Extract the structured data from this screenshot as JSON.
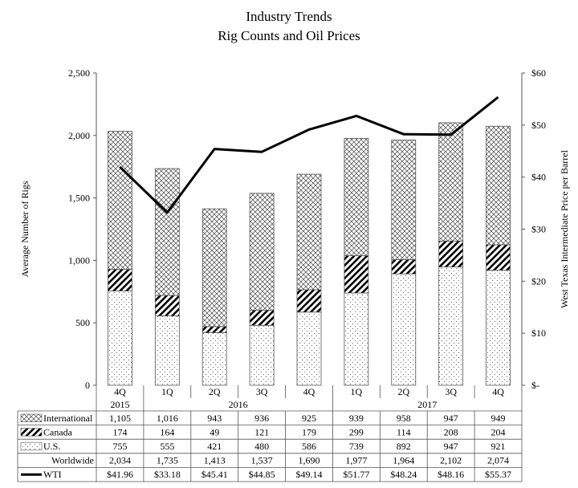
{
  "chart_data": {
    "type": "bar",
    "stacked": true,
    "title": "Industry Trends",
    "subtitle": "Rig Counts and Oil Prices",
    "ylabel_left": "Average Number  of Rigs",
    "ylabel_right": "West Texas Intermediate Price per Barrel",
    "ylim_left": [
      0,
      2500
    ],
    "ylim_right": [
      0,
      60
    ],
    "yticks_left": [
      "0",
      "500",
      "1,000",
      "1,500",
      "2,000",
      "2,500"
    ],
    "yticks_right": [
      "$-",
      "$10",
      "$20",
      "$30",
      "$40",
      "$50",
      "$60"
    ],
    "categories": [
      "4Q",
      "1Q",
      "2Q",
      "3Q",
      "4Q",
      "1Q",
      "2Q",
      "3Q",
      "4Q"
    ],
    "year_groups": [
      {
        "label": "2015",
        "span": 1
      },
      {
        "label": "2016",
        "span": 4
      },
      {
        "label": "2017",
        "span": 4
      }
    ],
    "series": [
      {
        "name": "U.S.",
        "kind": "bar",
        "pattern": "dots",
        "values": [
          755,
          555,
          421,
          480,
          586,
          739,
          892,
          947,
          921
        ],
        "labels": [
          "755",
          "555",
          "421",
          "480",
          "586",
          "739",
          "892",
          "947",
          "921"
        ]
      },
      {
        "name": "Canada",
        "kind": "bar",
        "pattern": "hatch",
        "values": [
          174,
          164,
          49,
          121,
          179,
          299,
          114,
          208,
          204
        ],
        "labels": [
          "174",
          "164",
          "49",
          "121",
          "179",
          "299",
          "114",
          "208",
          "204"
        ]
      },
      {
        "name": "International",
        "kind": "bar",
        "pattern": "crosshatch",
        "values": [
          1105,
          1016,
          943,
          936,
          925,
          939,
          958,
          947,
          949
        ],
        "labels": [
          "1,105",
          "1,016",
          "943",
          "936",
          "925",
          "939",
          "958",
          "947",
          "949"
        ]
      },
      {
        "name": "WTI",
        "kind": "line",
        "axis": "right",
        "values": [
          41.96,
          33.18,
          45.41,
          44.85,
          49.14,
          51.77,
          48.24,
          48.16,
          55.37
        ],
        "labels": [
          "$41.96",
          "$33.18",
          "$45.41",
          "$44.85",
          "$49.14",
          "$51.77",
          "$48.24",
          "$48.16",
          "$55.37"
        ]
      }
    ],
    "table_rows": [
      {
        "name": "International",
        "legend": "crosshatch",
        "labels": [
          "1,105",
          "1,016",
          "943",
          "936",
          "925",
          "939",
          "958",
          "947",
          "949"
        ]
      },
      {
        "name": "Canada",
        "legend": "hatch",
        "labels": [
          "174",
          "164",
          "49",
          "121",
          "179",
          "299",
          "114",
          "208",
          "204"
        ]
      },
      {
        "name": "U.S.",
        "legend": "dots",
        "labels": [
          "755",
          "555",
          "421",
          "480",
          "586",
          "739",
          "892",
          "947",
          "921"
        ]
      },
      {
        "name": "Worldwide",
        "legend": "none",
        "labels": [
          "2,034",
          "1,735",
          "1,413",
          "1,537",
          "1,690",
          "1,977",
          "1,964",
          "2,102",
          "2,074"
        ]
      },
      {
        "name": "WTI",
        "legend": "line",
        "labels": [
          "$41.96",
          "$33.18",
          "$45.41",
          "$44.85",
          "$49.14",
          "$51.77",
          "$48.24",
          "$48.16",
          "$55.37"
        ]
      }
    ],
    "grid": false,
    "legend": "data-table"
  }
}
